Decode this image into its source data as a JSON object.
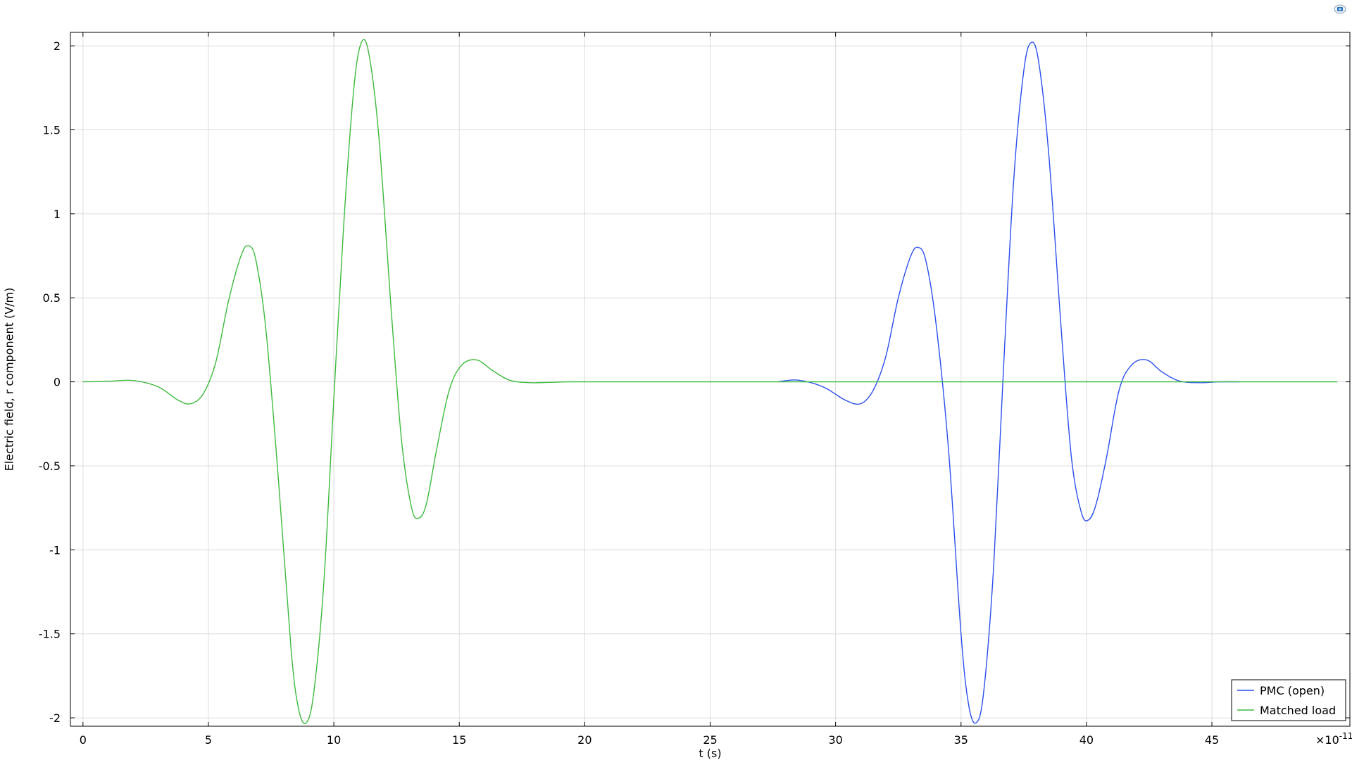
{
  "chart_data": {
    "type": "line",
    "xlabel": "t (s)",
    "ylabel": "Electric field, r component (V/m)",
    "x_multiplier": "×10",
    "x_multiplier_exp": "-11",
    "xlim": [
      -0.5,
      50.5
    ],
    "ylim": [
      -2.05,
      2.08
    ],
    "x_ticks": [
      0,
      5,
      10,
      15,
      20,
      25,
      30,
      35,
      40,
      45
    ],
    "x_tick_labels": [
      "0",
      "5",
      "10",
      "15",
      "20",
      "25",
      "30",
      "35",
      "40",
      "45"
    ],
    "y_ticks": [
      -2,
      -1.5,
      -1,
      -0.5,
      0,
      0.5,
      1,
      1.5,
      2
    ],
    "y_tick_labels": [
      "-2",
      "-1.5",
      "-1",
      "-0.5",
      "0",
      "0.5",
      "1",
      "1.5",
      "2"
    ],
    "grid": true,
    "legend_position": "bottom-right",
    "series": [
      {
        "name": "PMC (open)",
        "color": "#2a4ff0",
        "x": [
          27.7,
          28.5,
          29.5,
          30.4,
          31.0,
          31.5,
          32.0,
          32.5,
          33.0,
          33.3,
          33.6,
          34.0,
          34.5,
          35.0,
          35.3,
          35.6,
          35.9,
          36.3,
          36.7,
          37.1,
          37.5,
          37.8,
          38.1,
          38.5,
          39.0,
          39.4,
          39.8,
          40.1,
          40.4,
          40.8,
          41.3,
          41.8,
          42.4,
          43.0,
          43.7,
          44.5,
          45.3,
          46.1
        ],
        "y": [
          0,
          0.01,
          -0.03,
          -0.11,
          -0.13,
          -0.05,
          0.15,
          0.5,
          0.75,
          0.8,
          0.72,
          0.35,
          -0.4,
          -1.5,
          -1.92,
          -2.03,
          -1.85,
          -1.1,
          0.1,
          1.2,
          1.85,
          2.02,
          1.9,
          1.35,
          0.3,
          -0.45,
          -0.78,
          -0.82,
          -0.72,
          -0.45,
          -0.05,
          0.1,
          0.13,
          0.06,
          0.005,
          -0.005,
          0,
          0
        ]
      },
      {
        "name": "Matched load",
        "color": "#3dba3d",
        "x": [
          0,
          1,
          2,
          3,
          3.8,
          4.3,
          4.8,
          5.3,
          5.8,
          6.3,
          6.6,
          6.9,
          7.3,
          7.8,
          8.3,
          8.6,
          8.9,
          9.2,
          9.6,
          10.0,
          10.4,
          10.8,
          11.1,
          11.4,
          11.8,
          12.3,
          12.7,
          13.1,
          13.4,
          13.7,
          14.1,
          14.6,
          15.1,
          15.7,
          16.3,
          17.0,
          17.8,
          18.6,
          19.5,
          21,
          25,
          30,
          35,
          40,
          45,
          50
        ],
        "y": [
          0,
          0.003,
          0.008,
          -0.03,
          -0.11,
          -0.13,
          -0.07,
          0.12,
          0.48,
          0.75,
          0.81,
          0.72,
          0.3,
          -0.6,
          -1.6,
          -1.95,
          -2.03,
          -1.85,
          -1.2,
          -0.1,
          0.95,
          1.75,
          2.02,
          1.95,
          1.45,
          0.4,
          -0.35,
          -0.75,
          -0.81,
          -0.72,
          -0.4,
          -0.05,
          0.1,
          0.13,
          0.07,
          0.01,
          -0.005,
          -0.003,
          0,
          0,
          0,
          0,
          0,
          0,
          0,
          0
        ]
      }
    ]
  }
}
